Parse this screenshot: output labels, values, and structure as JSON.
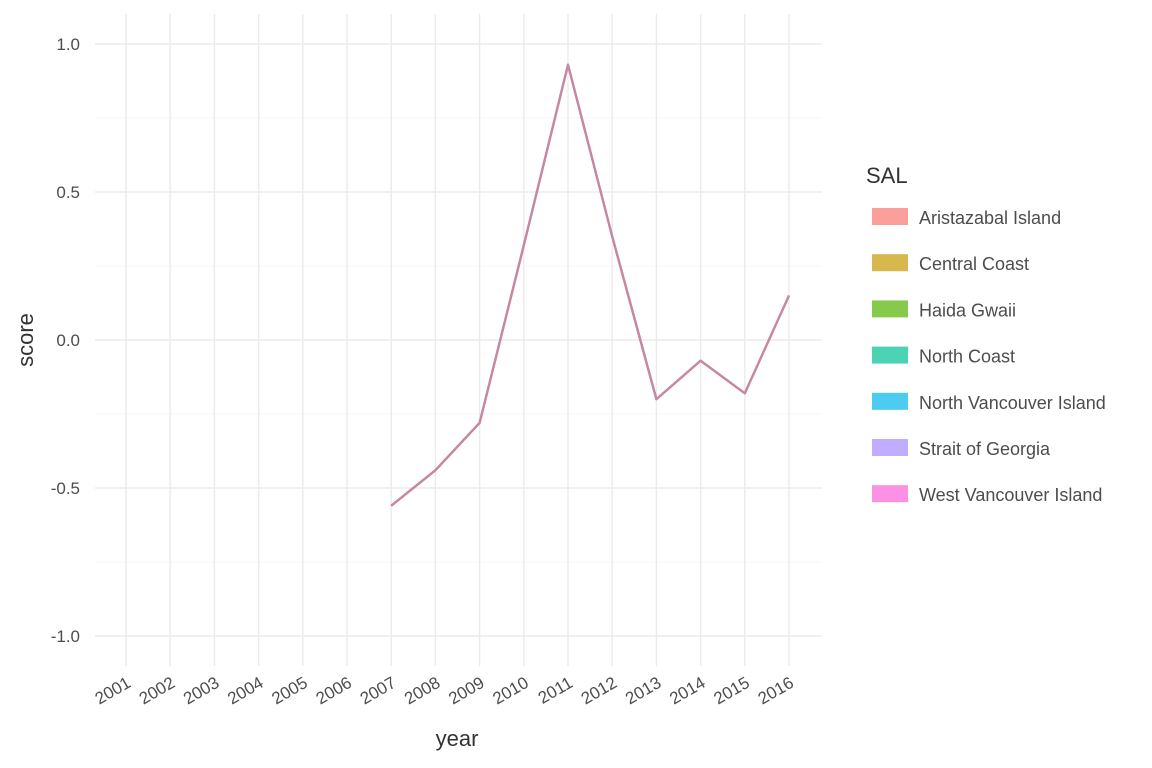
{
  "chart_data": {
    "type": "line",
    "xlabel": "year",
    "ylabel": "score",
    "x": [
      "2001",
      "2002",
      "2003",
      "2004",
      "2005",
      "2006",
      "2007",
      "2008",
      "2009",
      "2010",
      "2011",
      "2012",
      "2013",
      "2014",
      "2015",
      "2016"
    ],
    "ylim": [
      -1.1,
      1.1
    ],
    "yticks": [
      -1.0,
      -0.5,
      0.0,
      0.5,
      1.0
    ],
    "ytick_labels": [
      "-1.0",
      "-0.5",
      "0.0",
      "0.5",
      "1.0"
    ],
    "grid": true,
    "legend": {
      "title": "SAL",
      "placement": "right",
      "entries": [
        {
          "name": "Aristazabal Island",
          "color": "#F8766D"
        },
        {
          "name": "Central Coast",
          "color": "#C49A00"
        },
        {
          "name": "Haida Gwaii",
          "color": "#53B400"
        },
        {
          "name": "North Coast",
          "color": "#00C094"
        },
        {
          "name": "North Vancouver Island",
          "color": "#00B6EB"
        },
        {
          "name": "Strait of Georgia",
          "color": "#A58AFF"
        },
        {
          "name": "West Vancouver Island",
          "color": "#FB61D7"
        }
      ]
    },
    "line_color": "#D4849C",
    "series": [
      {
        "name": "Aristazabal Island",
        "values": [
          null,
          null,
          null,
          null,
          null,
          null,
          -0.56,
          -0.44,
          -0.28,
          0.32,
          0.93,
          0.35,
          -0.2,
          -0.07,
          -0.18,
          0.15
        ]
      },
      {
        "name": "Central Coast",
        "values": [
          null,
          null,
          null,
          null,
          null,
          null,
          -0.56,
          -0.44,
          -0.28,
          0.32,
          0.93,
          0.35,
          -0.2,
          -0.07,
          -0.18,
          0.15
        ]
      },
      {
        "name": "Haida Gwaii",
        "values": [
          null,
          null,
          null,
          null,
          null,
          null,
          -0.56,
          -0.44,
          -0.28,
          0.32,
          0.93,
          0.35,
          -0.2,
          -0.07,
          -0.18,
          0.15
        ]
      },
      {
        "name": "North Coast",
        "values": [
          null,
          null,
          null,
          null,
          null,
          null,
          -0.56,
          -0.44,
          -0.28,
          0.32,
          0.93,
          0.35,
          -0.2,
          -0.07,
          -0.18,
          0.15
        ]
      },
      {
        "name": "North Vancouver Island",
        "values": [
          null,
          null,
          null,
          null,
          null,
          null,
          -0.56,
          -0.44,
          -0.28,
          0.32,
          0.93,
          0.35,
          -0.2,
          -0.07,
          -0.18,
          0.15
        ]
      },
      {
        "name": "Strait of Georgia",
        "values": [
          null,
          null,
          null,
          null,
          null,
          null,
          -0.56,
          -0.44,
          -0.28,
          0.32,
          0.93,
          0.35,
          -0.2,
          -0.07,
          -0.18,
          0.15
        ]
      },
      {
        "name": "West Vancouver Island",
        "values": [
          null,
          null,
          null,
          null,
          null,
          null,
          -0.56,
          -0.44,
          -0.28,
          0.32,
          0.93,
          0.35,
          -0.2,
          -0.07,
          -0.18,
          0.15
        ]
      }
    ]
  }
}
